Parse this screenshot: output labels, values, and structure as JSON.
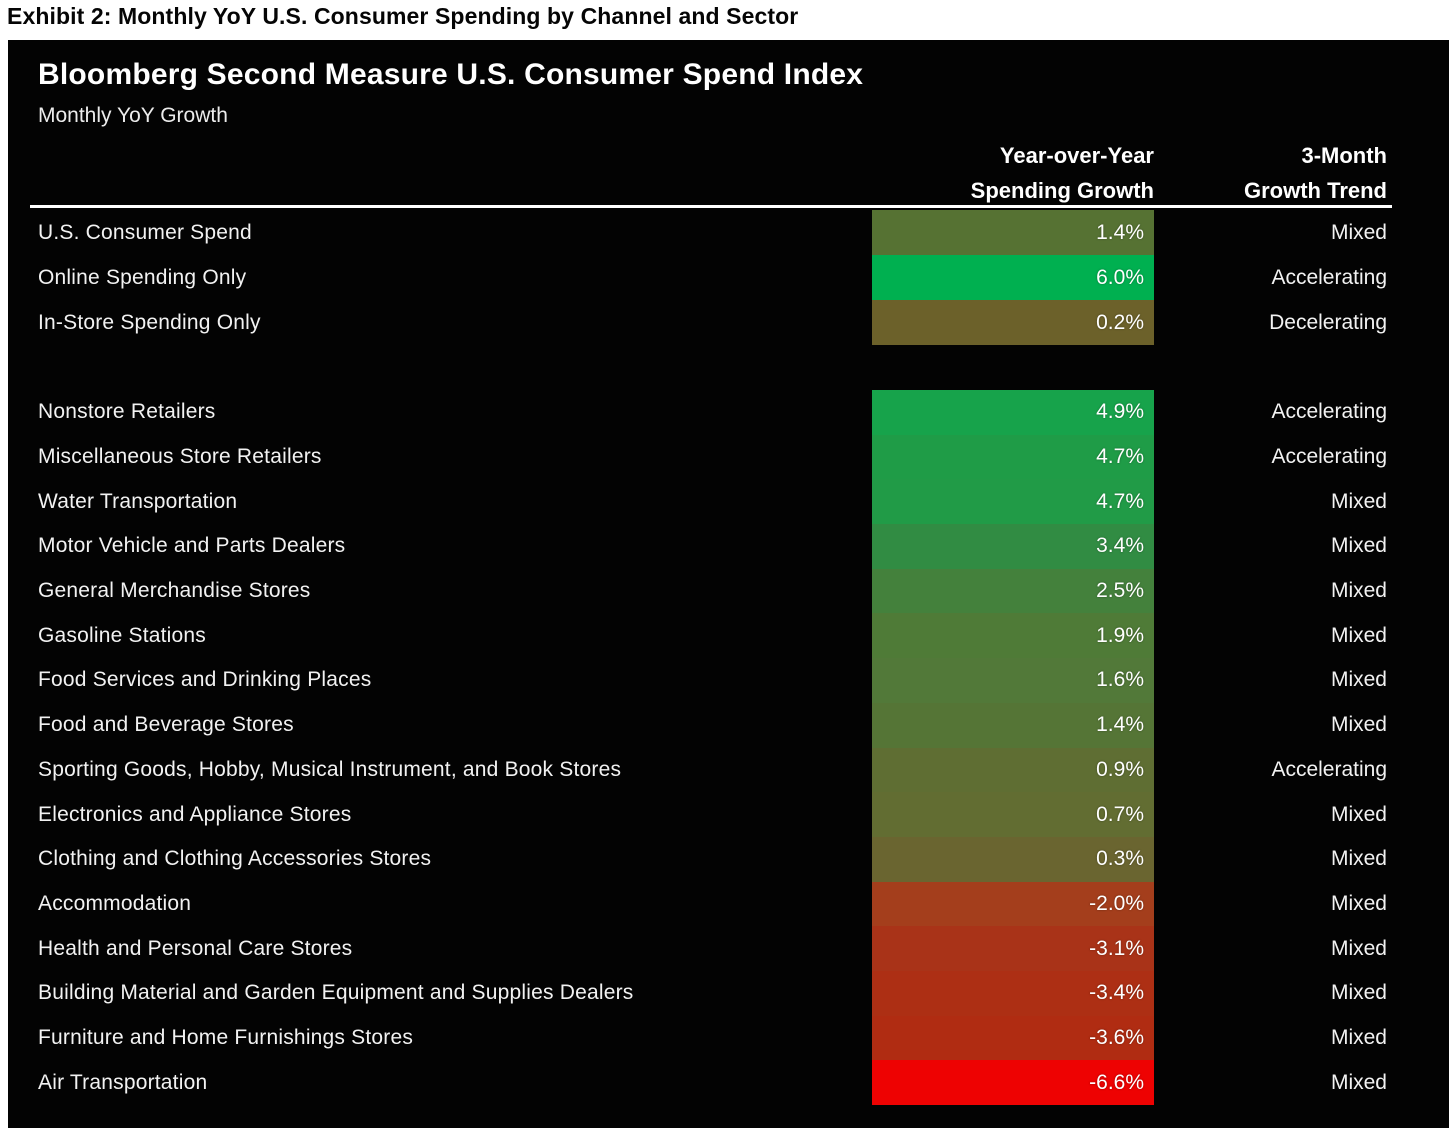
{
  "exhibit_title": "Exhibit 2: Monthly YoY U.S. Consumer Spending by Channel and Sector",
  "panel": {
    "title": "Bloomberg Second Measure U.S. Consumer Spend Index",
    "subtitle": "Monthly YoY Growth",
    "columns": {
      "value_header_line1": "Year-over-Year",
      "value_header_line2": "Spending Growth",
      "trend_header_line1": "3-Month",
      "trend_header_line2": "Growth Trend"
    },
    "colors": {
      "panel_background": "#030303",
      "header_rule": "#ffffff",
      "text": "#f2f2f2"
    }
  },
  "chart_data": {
    "type": "heatmap",
    "title": "Bloomberg Second Measure U.S. Consumer Spend Index",
    "subtitle": "Monthly YoY Growth",
    "value_column": "Year-over-Year Spending Growth",
    "trend_column": "3-Month Growth Trend",
    "value_unit": "percent",
    "groups": [
      {
        "name": "channels",
        "rows": [
          {
            "label": "U.S. Consumer Spend",
            "value_pct": 1.4,
            "trend": "Mixed",
            "color": "#567233"
          },
          {
            "label": "Online Spending Only",
            "value_pct": 6.0,
            "trend": "Accelerating",
            "color": "#00b050"
          },
          {
            "label": "In-Store Spending Only",
            "value_pct": 0.2,
            "trend": "Decelerating",
            "color": "#6c612a"
          }
        ]
      },
      {
        "name": "sectors",
        "rows": [
          {
            "label": "Nonstore Retailers",
            "value_pct": 4.9,
            "trend": "Accelerating",
            "color": "#17a34b"
          },
          {
            "label": "Miscellaneous Store Retailers",
            "value_pct": 4.7,
            "trend": "Accelerating",
            "color": "#1f9c47"
          },
          {
            "label": "Water Transportation",
            "value_pct": 4.7,
            "trend": "Mixed",
            "color": "#219b47"
          },
          {
            "label": "Motor Vehicle and Parts Dealers",
            "value_pct": 3.4,
            "trend": "Mixed",
            "color": "#318c43"
          },
          {
            "label": "General Merchandise Stores",
            "value_pct": 2.5,
            "trend": "Mixed",
            "color": "#44813c"
          },
          {
            "label": "Gasoline Stations",
            "value_pct": 1.9,
            "trend": "Mixed",
            "color": "#4f7b37"
          },
          {
            "label": "Food Services and Drinking Places",
            "value_pct": 1.6,
            "trend": "Mixed",
            "color": "#527939"
          },
          {
            "label": "Food and Beverage Stores",
            "value_pct": 1.4,
            "trend": "Mixed",
            "color": "#557536"
          },
          {
            "label": "Sporting Goods, Hobby, Musical Instrument, and Book Stores",
            "value_pct": 0.9,
            "trend": "Accelerating",
            "color": "#5f6e33"
          },
          {
            "label": "Electronics and Appliance Stores",
            "value_pct": 0.7,
            "trend": "Mixed",
            "color": "#626d32"
          },
          {
            "label": "Clothing and Clothing Accessories Stores",
            "value_pct": 0.3,
            "trend": "Mixed",
            "color": "#6a6530"
          },
          {
            "label": "Accommodation",
            "value_pct": -2.0,
            "trend": "Mixed",
            "color": "#a43e1c"
          },
          {
            "label": "Health and Personal Care Stores",
            "value_pct": -3.1,
            "trend": "Mixed",
            "color": "#a93318"
          },
          {
            "label": "Building Material and Garden Equipment and Supplies Dealers",
            "value_pct": -3.4,
            "trend": "Mixed",
            "color": "#ad2f14"
          },
          {
            "label": "Furniture and Home Furnishings Stores",
            "value_pct": -3.6,
            "trend": "Mixed",
            "color": "#b02c12"
          },
          {
            "label": "Air Transportation",
            "value_pct": -6.6,
            "trend": "Mixed",
            "color": "#ee0202"
          }
        ]
      }
    ]
  }
}
